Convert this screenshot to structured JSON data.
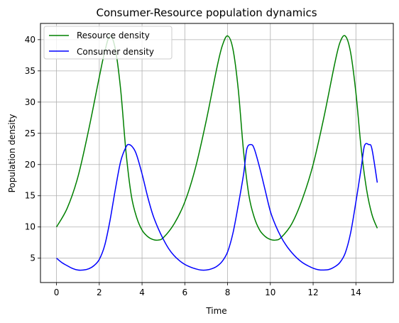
{
  "chart_data": {
    "type": "line",
    "title": "Consumer-Resource population dynamics",
    "xlabel": "Time",
    "ylabel": "Population density",
    "xlim": [
      -0.75,
      15.75
    ],
    "ylim": [
      1.1,
      42.6
    ],
    "xticks": [
      0,
      2,
      4,
      6,
      8,
      10,
      12,
      14
    ],
    "yticks": [
      5,
      10,
      15,
      20,
      25,
      30,
      35,
      40
    ],
    "grid": true,
    "legend_position": "top-left",
    "series": [
      {
        "name": "Resource density",
        "color": "#008000",
        "x": [
          0,
          0.5,
          1.0,
          1.5,
          2.0,
          2.25,
          2.5,
          2.75,
          3.0,
          3.25,
          3.5,
          3.75,
          4.0,
          4.25,
          4.5,
          4.75,
          5.0,
          5.5,
          6.0,
          6.5,
          7.0,
          7.5,
          7.75,
          8.0,
          8.25,
          8.5,
          8.75,
          9.0,
          9.25,
          9.5,
          9.75,
          10.0,
          10.25,
          10.5,
          11.0,
          11.5,
          12.0,
          12.5,
          13.0,
          13.25,
          13.5,
          13.75,
          14.0,
          14.25,
          14.5,
          14.75,
          15.0
        ],
        "values": [
          10.0,
          13.0,
          18.0,
          25.5,
          34.0,
          38.0,
          40.6,
          38.5,
          32.0,
          22.0,
          15.0,
          11.5,
          9.5,
          8.5,
          8.0,
          7.9,
          8.3,
          10.5,
          14.0,
          19.5,
          27.0,
          35.5,
          39.0,
          40.6,
          38.5,
          32.0,
          22.0,
          15.0,
          11.5,
          9.5,
          8.5,
          8.0,
          7.9,
          8.3,
          10.5,
          14.5,
          20.0,
          27.5,
          36.0,
          39.5,
          40.6,
          38.0,
          31.5,
          22.5,
          16.0,
          12.0,
          9.8
        ]
      },
      {
        "name": "Consumer density",
        "color": "#0000ff",
        "x": [
          0,
          0.25,
          0.5,
          0.75,
          1.0,
          1.25,
          1.5,
          1.75,
          2.0,
          2.25,
          2.5,
          2.75,
          3.0,
          3.25,
          3.4,
          3.6,
          3.75,
          4.0,
          4.25,
          4.5,
          4.75,
          5.0,
          5.25,
          5.5,
          5.75,
          6.0,
          6.25,
          6.5,
          6.75,
          7.0,
          7.25,
          7.5,
          7.75,
          8.0,
          8.25,
          8.5,
          8.75,
          8.9,
          9.1,
          9.25,
          9.5,
          9.75,
          10.0,
          10.25,
          10.5,
          10.75,
          11.0,
          11.25,
          11.5,
          11.75,
          12.0,
          12.25,
          12.5,
          12.75,
          13.0,
          13.25,
          13.5,
          13.75,
          14.0,
          14.25,
          14.4,
          14.6,
          14.75,
          15.0
        ],
        "values": [
          5.0,
          4.3,
          3.8,
          3.35,
          3.1,
          3.1,
          3.3,
          3.8,
          4.8,
          7.0,
          11.0,
          16.0,
          20.5,
          22.8,
          23.2,
          22.6,
          21.5,
          18.5,
          15.0,
          12.0,
          9.8,
          8.0,
          6.5,
          5.4,
          4.6,
          4.0,
          3.6,
          3.3,
          3.1,
          3.1,
          3.3,
          3.7,
          4.5,
          6.0,
          9.0,
          13.5,
          18.5,
          22.5,
          23.2,
          22.5,
          19.5,
          16.0,
          12.5,
          10.2,
          8.4,
          7.0,
          5.9,
          5.0,
          4.3,
          3.8,
          3.4,
          3.15,
          3.1,
          3.2,
          3.6,
          4.3,
          5.8,
          9.0,
          14.0,
          19.5,
          23.0,
          23.2,
          22.5,
          17.1
        ]
      }
    ]
  }
}
